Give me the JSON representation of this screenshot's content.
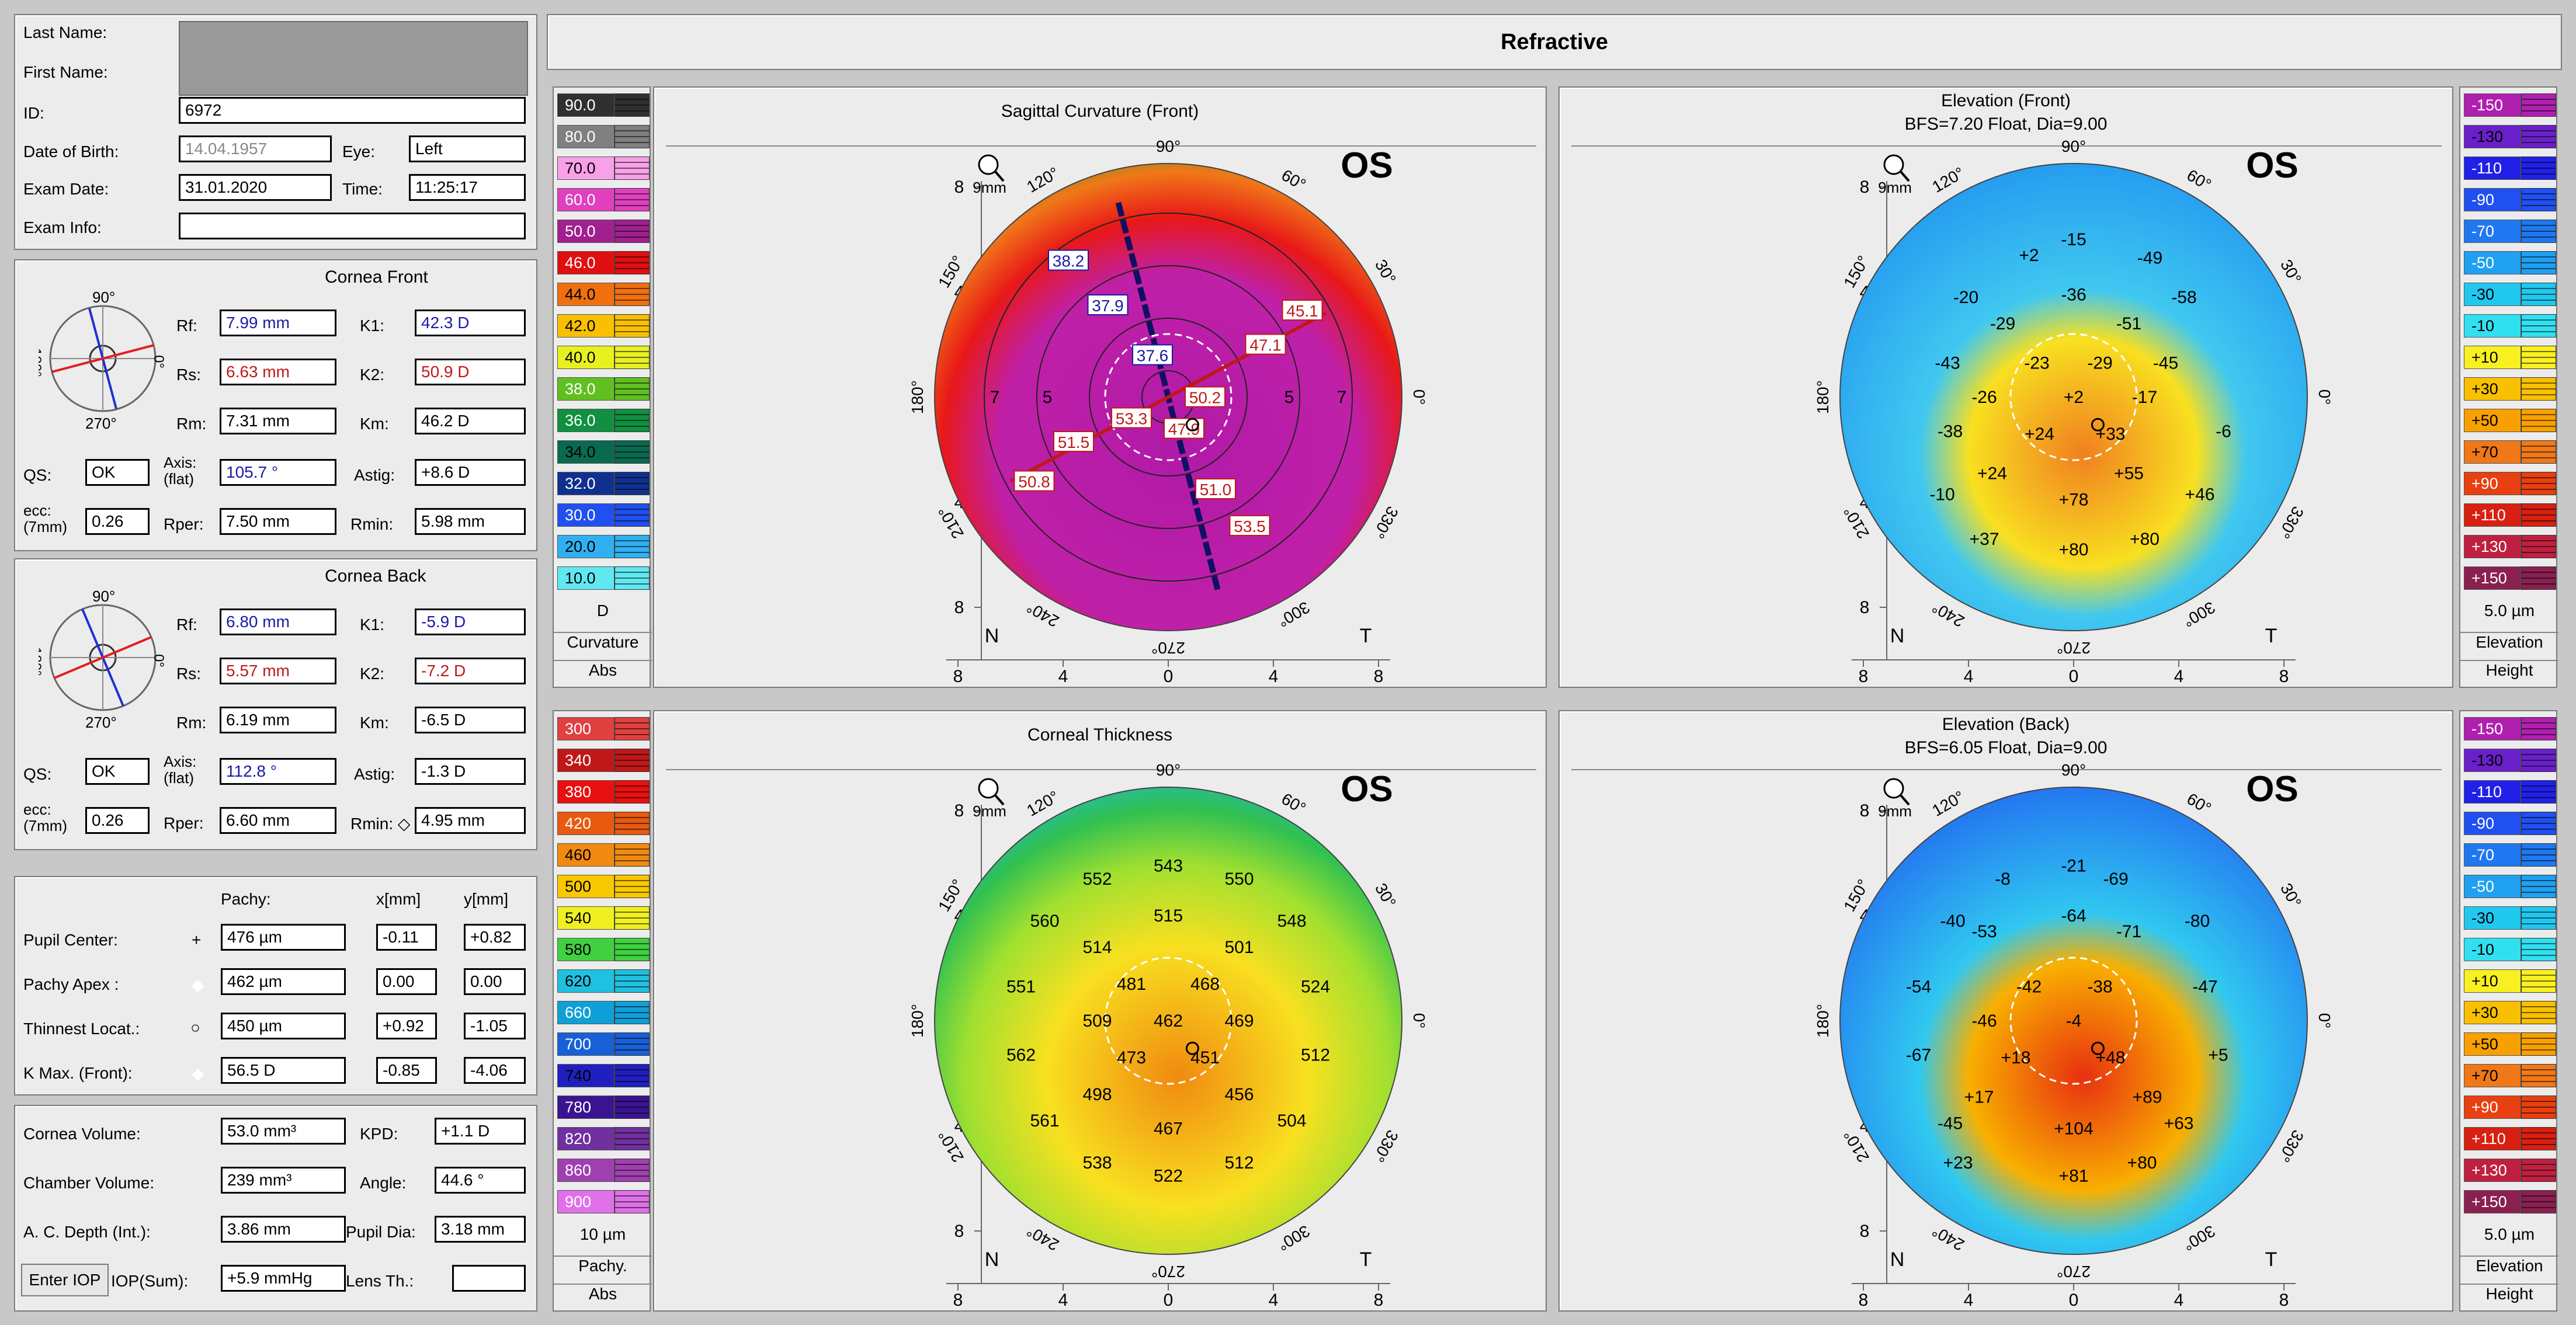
{
  "patient": {
    "last_name_label": "Last Name:",
    "first_name_label": "First Name:",
    "id_label": "ID:",
    "id": "6972",
    "dob_label": "Date of Birth:",
    "dob": "14.04.1957",
    "eye_label": "Eye:",
    "eye": "Left",
    "exam_date_label": "Exam Date:",
    "exam_date": "31.01.2020",
    "time_label": "Time:",
    "time": "11:25:17",
    "exam_info_label": "Exam Info:"
  },
  "cornea_front": {
    "title": "Cornea Front",
    "rf_label": "Rf:",
    "rf": "7.99 mm",
    "k1_label": "K1:",
    "k1": "42.3 D",
    "rs_label": "Rs:",
    "rs": "6.63 mm",
    "k2_label": "K2:",
    "k2": "50.9 D",
    "rm_label": "Rm:",
    "rm": "7.31 mm",
    "km_label": "Km:",
    "km": "46.2 D",
    "qs_label": "QS:",
    "qs": "OK",
    "axis_label": "Axis:\n(flat)",
    "axis": "105.7 °",
    "astig_label": "Astig:",
    "astig": "+8.6 D",
    "ecc_label": "ecc:\n(7mm)",
    "ecc": "0.26",
    "rper_label": "Rper:",
    "rper": "7.50 mm",
    "rmin_label": "Rmin:",
    "rmin": "5.98 mm",
    "dial_top": "90°",
    "dial_bottom": "270°",
    "dial_left": "180°",
    "dial_right": "0°"
  },
  "cornea_back": {
    "title": "Cornea Back",
    "rf_label": "Rf:",
    "rf": "6.80 mm",
    "k1_label": "K1:",
    "k1": "-5.9 D",
    "rs_label": "Rs:",
    "rs": "5.57 mm",
    "k2_label": "K2:",
    "k2": "-7.2 D",
    "rm_label": "Rm:",
    "rm": "6.19 mm",
    "km_label": "Km:",
    "km": "-6.5 D",
    "qs_label": "QS:",
    "qs": "OK",
    "axis_label": "Axis:\n(flat)",
    "axis": "112.8 °",
    "astig_label": "Astig:",
    "astig": "-1.3 D",
    "ecc_label": "ecc:\n(7mm)",
    "ecc": "0.26",
    "rper_label": "Rper:",
    "rper": "6.60 mm",
    "rmin_label": "Rmin: ◇",
    "rmin": "4.95 mm",
    "dial_top": "90°",
    "dial_bottom": "270°",
    "dial_left": "180°",
    "dial_right": "0°"
  },
  "pachy": {
    "col_pachy": "Pachy:",
    "col_x": "x[mm]",
    "col_y": "y[mm]",
    "rows": [
      {
        "label": "Pupil Center:",
        "marker": "+",
        "pachy": "476 µm",
        "x": "-0.11",
        "y": "+0.82"
      },
      {
        "label": "Pachy Apex :",
        "marker": "◆",
        "pachy": "462 µm",
        "x": "0.00",
        "y": "0.00"
      },
      {
        "label": "Thinnest Locat.:",
        "marker": "○",
        "pachy": "450 µm",
        "x": "+0.92",
        "y": "-1.05"
      },
      {
        "label": "K Max. (Front):",
        "marker": "◆",
        "pachy": "56.5 D",
        "x": "-0.85",
        "y": "-4.06"
      }
    ]
  },
  "volumes": {
    "cornea_volume_label": "Cornea Volume:",
    "cornea_volume": "53.0 mm³",
    "kpd_label": "KPD:",
    "kpd": "+1.1 D",
    "chamber_volume_label": "Chamber Volume:",
    "chamber_volume": "239 mm³",
    "angle_label": "Angle:",
    "angle": "44.6 °",
    "ac_depth_label": "A. C. Depth (Int.):",
    "ac_depth": "3.86 mm",
    "pupil_dia_label": "Pupil Dia:",
    "pupil_dia": "3.18 mm",
    "enter_iop_label": "Enter IOP",
    "iop_sum_label": "IOP(Sum):",
    "iop_sum": "+5.9 mmHg",
    "lens_th_label": "Lens Th.:",
    "lens_th": ""
  },
  "header": {
    "title": "Refractive"
  },
  "scales": {
    "curvature": {
      "values": [
        "90.0",
        "80.0",
        "70.0",
        "60.0",
        "50.0",
        "46.0",
        "44.0",
        "42.0",
        "40.0",
        "38.0",
        "36.0",
        "34.0",
        "32.0",
        "30.0",
        "20.0",
        "10.0"
      ],
      "colors": [
        "#303030",
        "#808080",
        "#f8a0e8",
        "#e040c0",
        "#a0208f",
        "#e01010",
        "#f07010",
        "#f8c000",
        "#e8f020",
        "#60c020",
        "#109040",
        "#0a6a50",
        "#103090",
        "#2050f0",
        "#30b0f0",
        "#60e8f0"
      ],
      "unit": "D",
      "name": "Curvature",
      "mode": "Abs"
    },
    "thickness": {
      "values": [
        "300",
        "340",
        "380",
        "420",
        "460",
        "500",
        "540",
        "580",
        "620",
        "660",
        "700",
        "740",
        "780",
        "820",
        "860",
        "900"
      ],
      "colors": [
        "#e04040",
        "#c01818",
        "#e81010",
        "#e85a10",
        "#f08a10",
        "#f8c800",
        "#f0f020",
        "#40d040",
        "#20c0e0",
        "#10a0d8",
        "#1860d8",
        "#2020c0",
        "#3a1490",
        "#7030a0",
        "#a040b0",
        "#e070e8"
      ],
      "unit": "10 µm",
      "name": "Pachy.",
      "mode": "Abs"
    },
    "elevation": {
      "values": [
        "-150",
        "-130",
        "-110",
        "-90",
        "-70",
        "-50",
        "-30",
        "-10",
        "+10",
        "+30",
        "+50",
        "+70",
        "+90",
        "+110",
        "+130",
        "+150"
      ],
      "colors": [
        "#b020b0",
        "#6a20c8",
        "#2020e8",
        "#2050f0",
        "#2078f0",
        "#20a0f0",
        "#20c8f0",
        "#30e0f0",
        "#f8f020",
        "#f8c000",
        "#f8a000",
        "#f07818",
        "#e84010",
        "#d82010",
        "#c02040",
        "#8a2050"
      ],
      "unit": "5.0 µm",
      "name": "Elevation",
      "mode": "Height"
    }
  },
  "maps": {
    "sagittal": {
      "title": "Sagittal Curvature (Front)",
      "subtitle": "",
      "eye": "OS",
      "zoom": "9mm",
      "axis_ticks": [
        "8",
        "4",
        "0",
        "4",
        "8"
      ],
      "nasal": "N",
      "temporal": "T",
      "angles": [
        "90°",
        "60°",
        "30°",
        "0°",
        "330°",
        "300°",
        "270°",
        "240°",
        "210°",
        "180°",
        "150°",
        "120°"
      ],
      "ring_labels": [
        "5",
        "7",
        "5",
        "7"
      ],
      "values": [
        "38.2",
        "37.9",
        "37.6",
        "45.1",
        "47.1",
        "50.2",
        "53.3",
        "47.9",
        "51.5",
        "50.8",
        "51.0",
        "53.5"
      ]
    },
    "elevation_front": {
      "title": "Elevation (Front)",
      "subtitle": "BFS=7.20 Float, Dia=9.00",
      "eye": "OS",
      "zoom": "9mm",
      "axis_ticks": [
        "8",
        "4",
        "0",
        "4",
        "8"
      ],
      "nasal": "N",
      "temporal": "T",
      "angles": [
        "90°",
        "60°",
        "30°",
        "0°",
        "330°",
        "300°",
        "270°",
        "240°",
        "210°",
        "180°",
        "150°",
        "120°"
      ],
      "values": [
        "-15",
        "-49",
        "+2",
        "-20",
        "-36",
        "-58",
        "-29",
        "-51",
        "-43",
        "-23",
        "-29",
        "-45",
        "-26",
        "+2",
        "-17",
        "-38",
        "+24",
        "+33",
        "-6",
        "+24",
        "+55",
        "-10",
        "+46",
        "+78",
        "+37",
        "+80",
        "+80"
      ]
    },
    "thickness": {
      "title": "Corneal Thickness",
      "subtitle": "",
      "eye": "OS",
      "zoom": "9mm",
      "axis_ticks": [
        "8",
        "4",
        "0",
        "4",
        "8"
      ],
      "nasal": "N",
      "temporal": "T",
      "angles": [
        "90°",
        "60°",
        "30°",
        "0°",
        "330°",
        "300°",
        "270°",
        "240°",
        "210°",
        "180°",
        "150°",
        "120°"
      ],
      "values": [
        "543",
        "552",
        "550",
        "515",
        "560",
        "514",
        "501",
        "548",
        "481",
        "468",
        "551",
        "524",
        "509",
        "462",
        "469",
        "562",
        "473",
        "451",
        "512",
        "498",
        "456",
        "561",
        "504",
        "467",
        "538",
        "522",
        "512"
      ]
    },
    "elevation_back": {
      "title": "Elevation (Back)",
      "subtitle": "BFS=6.05 Float, Dia=9.00",
      "eye": "OS",
      "zoom": "9mm",
      "axis_ticks": [
        "8",
        "4",
        "0",
        "4",
        "8"
      ],
      "nasal": "N",
      "temporal": "T",
      "angles": [
        "90°",
        "60°",
        "30°",
        "0°",
        "330°",
        "300°",
        "270°",
        "240°",
        "210°",
        "180°",
        "150°",
        "120°"
      ],
      "values": [
        "-21",
        "-8",
        "-69",
        "-40",
        "-64",
        "-53",
        "-71",
        "-80",
        "-54",
        "-42",
        "-38",
        "-47",
        "-46",
        "-4",
        "-67",
        "+18",
        "+48",
        "+5",
        "+17",
        "+89",
        "-45",
        "+104",
        "+63",
        "+23",
        "+81",
        "+80"
      ]
    }
  }
}
